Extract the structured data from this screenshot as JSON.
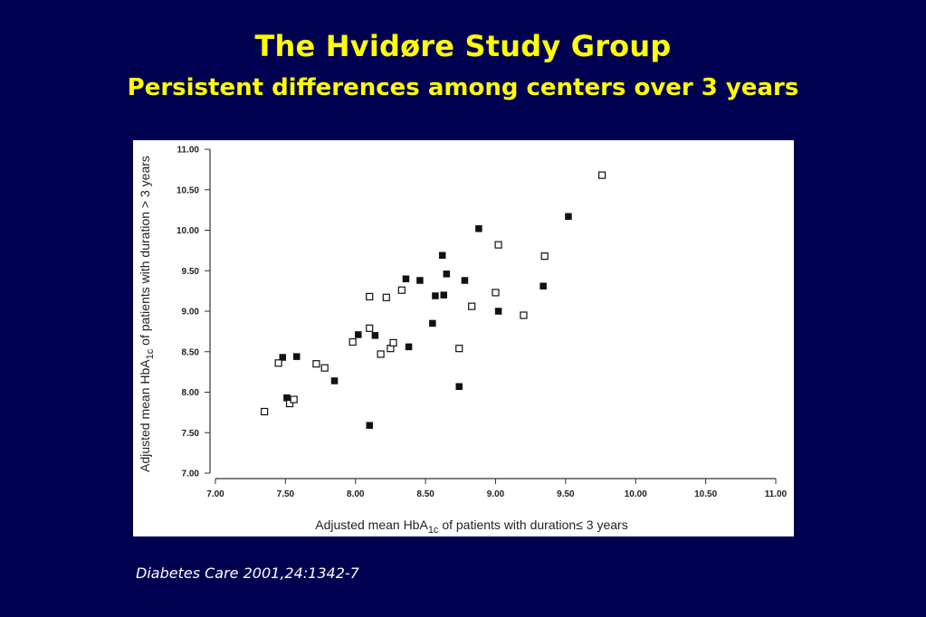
{
  "slide": {
    "title": "The Hvidøre Study Group",
    "subtitle": "Persistent differences among centers over 3 years",
    "citation": "Diabetes Care 2001,24:1342-7"
  },
  "chart_data": {
    "type": "scatter",
    "xlabel_parts": [
      "Adjusted mean HbA",
      "1c",
      " of patients with duration",
      "≤",
      " 3 years"
    ],
    "ylabel_parts": [
      "Adjusted mean HbA",
      "1c",
      " of patients with duration > 3 years"
    ],
    "xlim": [
      7.0,
      11.0
    ],
    "ylim": [
      7.0,
      11.0
    ],
    "xticks": [
      "7.00",
      "7.50",
      "8.00",
      "8.50",
      "9.00",
      "9.50",
      "10.00",
      "10.50",
      "11.00"
    ],
    "yticks": [
      "7.00",
      "7.50",
      "8.00",
      "8.50",
      "9.00",
      "9.50",
      "10.00",
      "10.50",
      "11.00"
    ],
    "grid": false,
    "colors": {
      "marker": "#111111",
      "axis": "#333333"
    },
    "series": [
      {
        "marker": "filled-square",
        "points": [
          [
            7.48,
            8.43
          ],
          [
            7.51,
            7.93
          ],
          [
            7.58,
            8.44
          ],
          [
            7.85,
            8.14
          ],
          [
            8.02,
            8.71
          ],
          [
            8.1,
            7.59
          ],
          [
            8.14,
            8.7
          ],
          [
            8.36,
            9.4
          ],
          [
            8.38,
            8.56
          ],
          [
            8.46,
            9.38
          ],
          [
            8.55,
            8.85
          ],
          [
            8.57,
            9.19
          ],
          [
            8.62,
            9.69
          ],
          [
            8.63,
            9.2
          ],
          [
            8.65,
            9.46
          ],
          [
            8.74,
            8.07
          ],
          [
            8.78,
            9.38
          ],
          [
            8.88,
            10.02
          ],
          [
            9.02,
            9.0
          ],
          [
            9.34,
            9.31
          ],
          [
            9.52,
            10.17
          ]
        ]
      },
      {
        "marker": "open-square",
        "points": [
          [
            7.35,
            7.76
          ],
          [
            7.45,
            8.36
          ],
          [
            7.53,
            7.86
          ],
          [
            7.56,
            7.91
          ],
          [
            7.72,
            8.35
          ],
          [
            7.78,
            8.3
          ],
          [
            7.98,
            8.62
          ],
          [
            8.1,
            9.18
          ],
          [
            8.1,
            8.79
          ],
          [
            8.18,
            8.47
          ],
          [
            8.22,
            9.17
          ],
          [
            8.25,
            8.54
          ],
          [
            8.27,
            8.61
          ],
          [
            8.33,
            9.26
          ],
          [
            8.74,
            8.54
          ],
          [
            8.83,
            9.06
          ],
          [
            9.0,
            9.23
          ],
          [
            9.02,
            9.82
          ],
          [
            9.2,
            8.95
          ],
          [
            9.35,
            9.68
          ],
          [
            9.76,
            10.68
          ]
        ]
      }
    ]
  }
}
